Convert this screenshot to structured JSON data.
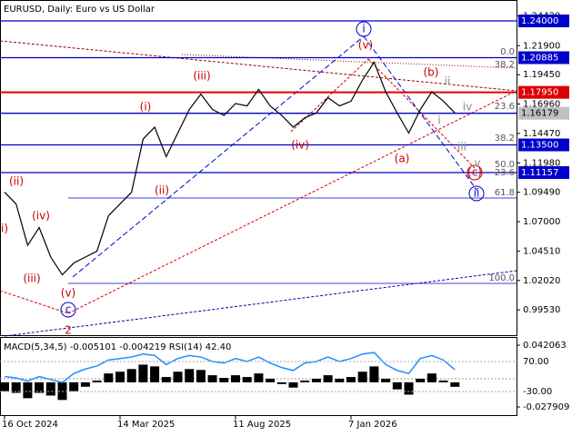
{
  "chart_data": [
    {
      "type": "line",
      "title": "EURUSD, Daily:  Euro vs US Dollar",
      "categories": [
        "16 Oct 2024",
        null,
        null,
        null,
        null,
        null,
        null,
        null,
        null,
        null,
        "14 Mar 2025",
        null,
        null,
        null,
        null,
        null,
        null,
        null,
        null,
        null,
        "11 Aug 2025",
        null,
        null,
        null,
        null,
        null,
        null,
        null,
        null,
        null,
        "7 Jan 2026",
        null,
        null,
        null,
        null,
        null,
        null,
        null,
        null,
        null
      ],
      "series": [
        {
          "color": "#000000",
          "values": [
            1.095,
            1.085,
            1.05,
            1.065,
            1.04,
            1.025,
            1.035,
            1.04,
            1.045,
            1.075,
            1.085,
            1.095,
            1.14,
            1.15,
            1.125,
            1.145,
            1.165,
            1.178,
            1.165,
            1.16,
            1.17,
            1.168,
            1.182,
            1.168,
            1.16,
            1.15,
            1.158,
            1.162,
            1.175,
            1.168,
            1.172,
            1.19,
            1.205,
            1.18,
            1.162,
            1.145,
            1.165,
            1.18,
            1.172,
            1.162
          ]
        }
      ],
      "ylim": [
        0.9731,
        1.2577
      ],
      "yticks": [
        {
          "value": 1.2442,
          "label": "1.24420"
        },
        {
          "value": 1.219,
          "label": "1.21900"
        },
        {
          "value": 1.1945,
          "label": "1.19450"
        },
        {
          "value": 1.1696,
          "label": "1.16960"
        },
        {
          "value": 1.1447,
          "label": "1.14470"
        },
        {
          "value": 1.1198,
          "label": "1.11980"
        },
        {
          "value": 1.0949,
          "label": "1.09490"
        },
        {
          "value": 1.07,
          "label": "1.07000"
        },
        {
          "value": 1.0451,
          "label": "1.04510"
        },
        {
          "value": 1.0202,
          "label": "1.02020"
        },
        {
          "value": 0.9953,
          "label": "0.99530"
        }
      ],
      "levels": [
        {
          "value": 1.24,
          "label": "1.24000",
          "color": "#0000cc"
        },
        {
          "value": 1.20885,
          "label": "1.20885",
          "color": "#0000cc"
        },
        {
          "value": 1.1795,
          "label": "1.17950",
          "color": "#dd0000"
        },
        {
          "value": 1.16179,
          "label": "1.16179",
          "color": "#0000cc"
        },
        {
          "value": 1.135,
          "label": "1.13500",
          "color": "#0000cc"
        },
        {
          "value": 1.11157,
          "label": "1.11157",
          "color": "#0000cc"
        }
      ],
      "annotations": [
        "i",
        "(v)",
        "(iii)",
        "(i)",
        "(iv)",
        "(ii)",
        "(a)",
        "(b)",
        "(c)",
        "ii",
        "iv",
        "i",
        "iii",
        "v",
        "ii",
        "c",
        "2",
        "(ii)",
        "(iv)",
        "(iii)",
        "i)",
        "(v)"
      ],
      "fib_labels": [
        "0.0",
        "38.2",
        "23.6",
        "38.2",
        "50.0",
        "23.6",
        "61.8",
        "100.0"
      ]
    },
    {
      "type": "bar",
      "title": "MACD(5,34,5) -0.005101 -0.004219 RSI(14) 42.40",
      "series": [
        {
          "color": "#000000",
          "values": [
            -0.01,
            -0.012,
            -0.018,
            -0.012,
            -0.015,
            -0.02,
            -0.01,
            -0.005,
            0.002,
            0.01,
            0.012,
            0.015,
            0.02,
            0.018,
            0.006,
            0.012,
            0.015,
            0.014,
            0.008,
            0.005,
            0.008,
            0.006,
            0.01,
            0.004,
            -0.002,
            -0.006,
            0.002,
            0.004,
            0.008,
            0.004,
            0.006,
            0.012,
            0.018,
            0.004,
            -0.008,
            -0.014,
            0.004,
            0.01,
            0.002,
            -0.0051
          ]
        },
        {
          "color": "#1e90ff",
          "axis": "y2",
          "values": [
            20,
            15,
            5,
            20,
            10,
            0,
            30,
            45,
            55,
            75,
            80,
            85,
            95,
            90,
            60,
            80,
            90,
            85,
            70,
            65,
            80,
            70,
            85,
            65,
            50,
            40,
            65,
            70,
            85,
            70,
            80,
            95,
            100,
            60,
            40,
            30,
            80,
            90,
            75,
            42.4
          ]
        }
      ],
      "ylim": [
        -0.0382,
        0.0503
      ],
      "yticks": [
        0.042063,
        -0.027909
      ],
      "y2lim": [
        -111.8,
        148.8
      ],
      "y2ticks": [
        {
          "value": 70,
          "label": "70.00"
        },
        {
          "value": -30,
          "label": "-30.00"
        }
      ]
    }
  ]
}
